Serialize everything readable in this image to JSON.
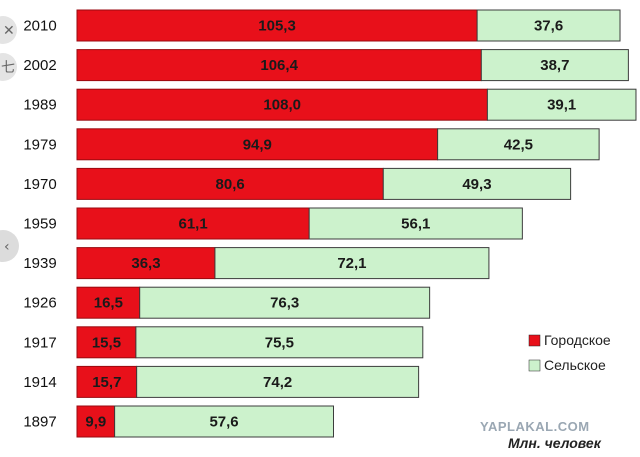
{
  "chart_data": {
    "type": "bar",
    "orientation": "horizontal",
    "stacked": true,
    "categories": [
      "2010",
      "2002",
      "1989",
      "1979",
      "1970",
      "1959",
      "1939",
      "1926",
      "1917",
      "1914",
      "1897"
    ],
    "series": [
      {
        "name": "Городское",
        "color": "#e8101a",
        "values": [
          105.3,
          106.4,
          108.0,
          94.9,
          80.6,
          61.1,
          36.3,
          16.5,
          15.5,
          15.7,
          9.9
        ],
        "labels": [
          "105,3",
          "106,4",
          "108,0",
          "94,9",
          "80,6",
          "61,1",
          "36,3",
          "16,5",
          "15,5",
          "15,7",
          "9,9"
        ]
      },
      {
        "name": "Сельское",
        "color": "#ccf2cc",
        "values": [
          37.6,
          38.7,
          39.1,
          42.5,
          49.3,
          56.1,
          72.1,
          76.3,
          75.5,
          74.2,
          57.6
        ],
        "labels": [
          "37,6",
          "38,7",
          "39,1",
          "42,5",
          "49,3",
          "56,1",
          "72,1",
          "76,3",
          "75,5",
          "74,2",
          "57,6"
        ]
      }
    ],
    "unit_label": "Млн. человек",
    "legend_position": "right",
    "grid": false
  },
  "watermark": "YAPLAKAL.COM",
  "edge_glyphs": [
    "✕",
    "七",
    "‹"
  ]
}
